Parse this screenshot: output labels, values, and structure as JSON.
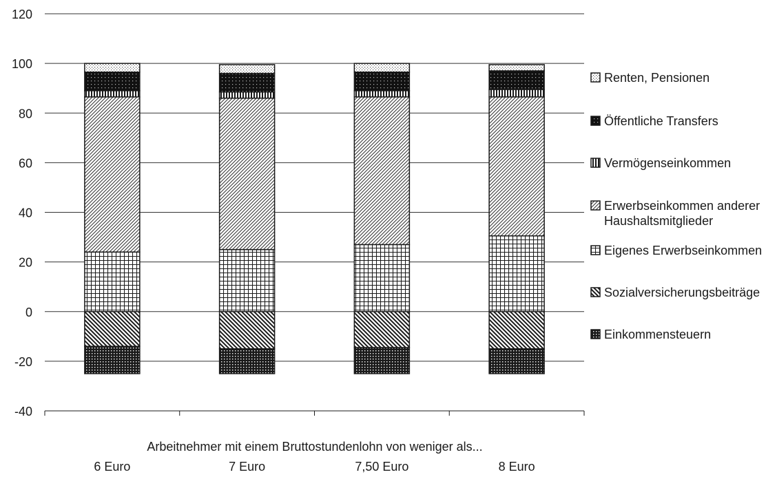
{
  "chart_data": {
    "type": "bar",
    "stacked": true,
    "title": "",
    "xlabel": "Arbeitnehmer mit einem Bruttostundenlohn von weniger als...",
    "ylabel": "",
    "ylim": [
      -40,
      120
    ],
    "yticks": [
      120,
      100,
      80,
      60,
      40,
      20,
      0,
      -20,
      -40
    ],
    "grid": true,
    "legend_position": "right",
    "categories": [
      "6 Euro",
      "7 Euro",
      "7,50 Euro",
      "8 Euro"
    ],
    "series": [
      {
        "name": "Einkommensteuern",
        "pattern": "dense-dots",
        "values": [
          -11,
          -10,
          -10.5,
          -10
        ]
      },
      {
        "name": "Sozialversicherungsbeiträge",
        "pattern": "diagonal-down",
        "values": [
          -14,
          -15,
          -14.5,
          -15
        ]
      },
      {
        "name": "Eigenes Erwerbseinkommen",
        "pattern": "grid",
        "values": [
          24,
          25,
          27,
          30.5
        ]
      },
      {
        "name": "Erwerbseinkommen anderer Haushaltsmitglieder",
        "pattern": "diagonal-up",
        "values": [
          62.5,
          61,
          59.5,
          56
        ]
      },
      {
        "name": "Vermögenseinkommen",
        "pattern": "vertical-lines",
        "values": [
          2.5,
          2.5,
          2.5,
          3
        ]
      },
      {
        "name": "Öffentliche Transfers",
        "pattern": "black-dots",
        "values": [
          7.5,
          7.5,
          7.5,
          7.5
        ]
      },
      {
        "name": "Renten, Pensionen",
        "pattern": "light-dots",
        "values": [
          3.5,
          3.5,
          3.5,
          2.5
        ]
      }
    ],
    "legend_order": [
      "Renten, Pensionen",
      "Öffentliche Transfers",
      "Vermögenseinkommen",
      "Erwerbseinkommen anderer Haushaltsmitglieder",
      "Eigenes Erwerbseinkommen",
      "Sozialversicherungsbeiträge",
      "Einkommensteuern"
    ]
  }
}
